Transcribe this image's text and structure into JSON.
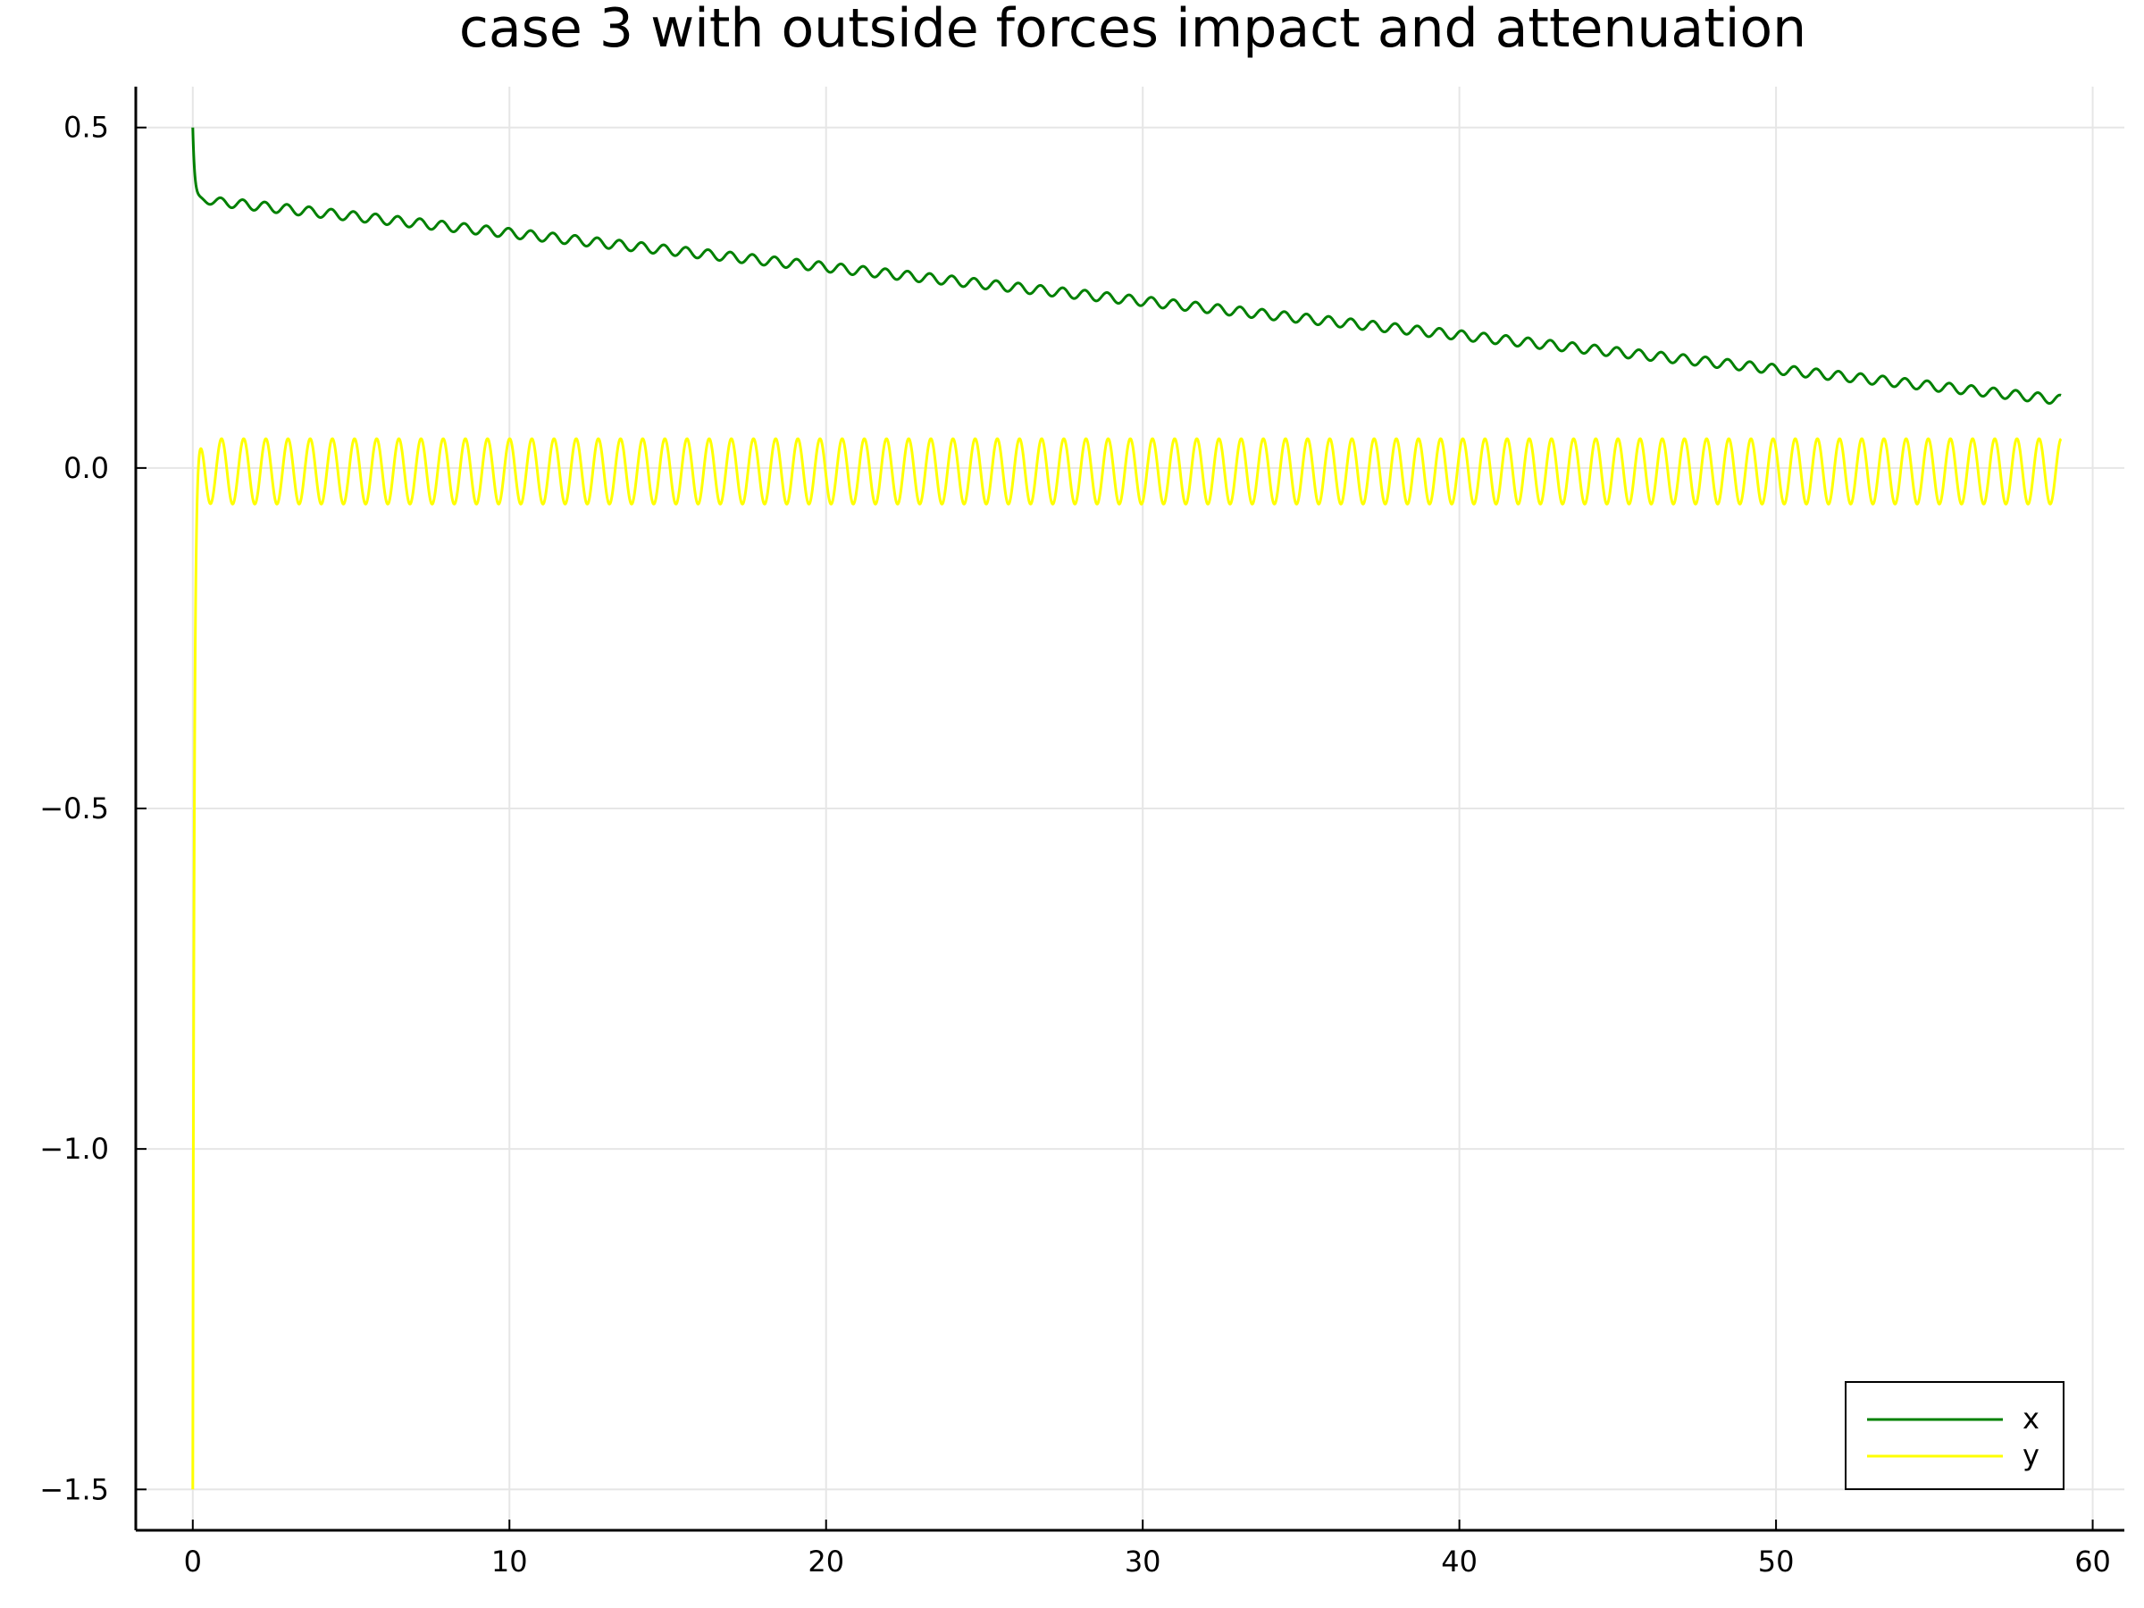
{
  "chart_data": {
    "type": "line",
    "title": "case 3 with outside forces impact and attenuation",
    "xlabel": "",
    "ylabel": "",
    "xlim": [
      -1.8,
      61.0
    ],
    "ylim": [
      -1.56,
      0.56
    ],
    "x_ticks": [
      0,
      10,
      20,
      30,
      40,
      50,
      60
    ],
    "x_tick_labels": [
      "0",
      "10",
      "20",
      "30",
      "40",
      "50",
      "60"
    ],
    "y_ticks": [
      0.5,
      0.0,
      -0.5,
      -1.0,
      -1.5
    ],
    "y_tick_labels": [
      "0.5",
      "0.0",
      "−0.5",
      "−1.0",
      "−1.5"
    ],
    "grid": true,
    "legend_position": "bottom-right",
    "t_end": 59,
    "series": [
      {
        "name": "x",
        "color": "#008000",
        "initial": 0.5,
        "settle_value": 0.395,
        "end_value": 0.1,
        "oscillation_amplitude": 0.007,
        "oscillation_period": 0.7
      },
      {
        "name": "y",
        "color": "#ffff00",
        "initial": -1.5,
        "center": -0.005,
        "oscillation_amplitude": 0.048,
        "oscillation_period": 0.7
      }
    ]
  }
}
